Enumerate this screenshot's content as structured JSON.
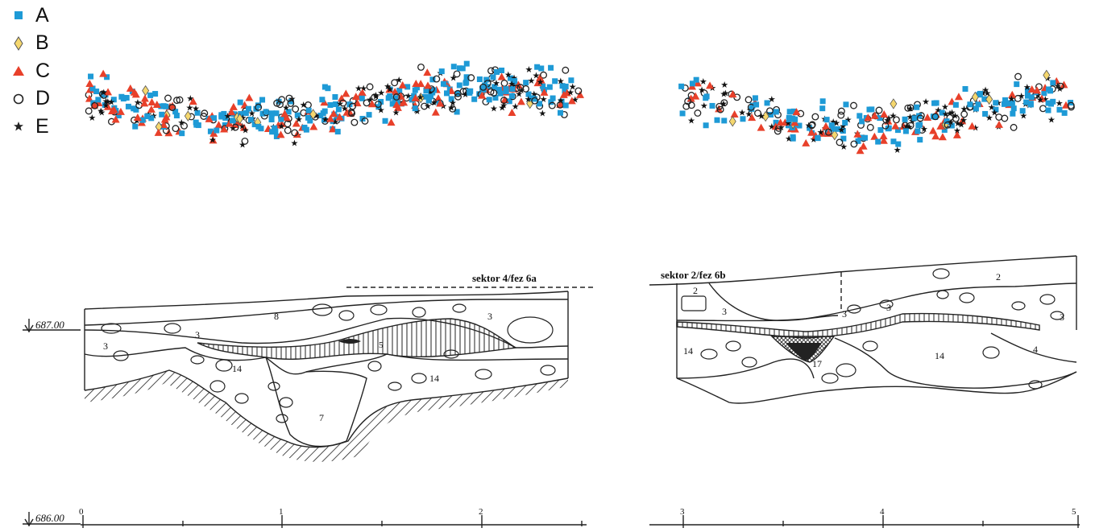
{
  "legend": {
    "items": [
      {
        "key": "A",
        "symbol": "square",
        "color": "#1e9ad6"
      },
      {
        "key": "B",
        "symbol": "diamond",
        "color": "#f5d76e"
      },
      {
        "key": "C",
        "symbol": "triangle",
        "color": "#e8402a"
      },
      {
        "key": "D",
        "symbol": "circle",
        "color": "#222222"
      },
      {
        "key": "E",
        "symbol": "star",
        "color": "#222222"
      }
    ]
  },
  "sections": {
    "left": {
      "title": "sektor 4/fez 6a",
      "elevation_top": "687.00",
      "elevation_bottom": "686.00",
      "layer_labels": [
        "8",
        "3",
        "3",
        "3",
        "5",
        "14",
        "14",
        "7"
      ],
      "scale_labels": [
        "0",
        "1",
        "2"
      ]
    },
    "right": {
      "title": "sektor 2/fez 6b",
      "layer_labels": [
        "2",
        "2",
        "3",
        "3",
        "3",
        "3",
        "14",
        "14",
        "4",
        "17"
      ],
      "scale_labels": [
        "3",
        "4",
        "5"
      ]
    }
  }
}
